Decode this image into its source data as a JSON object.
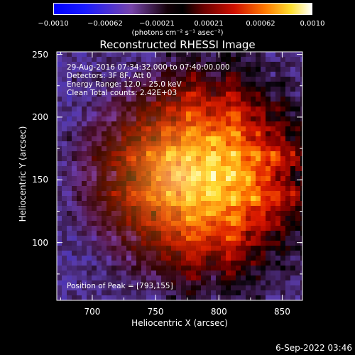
{
  "colorbar": {
    "ticks": [
      "−0.0010",
      "−0.00062",
      "−0.00021",
      "0.00021",
      "0.00062",
      "0.0010"
    ],
    "tick_values": [
      -0.001,
      -0.00062,
      -0.00021,
      0.00021,
      0.00062,
      0.001
    ],
    "units_label": "(photons cm⁻² s⁻¹ asec⁻²)",
    "colors": [
      "#0000ff",
      "#2222ff",
      "#7755aa",
      "#000000",
      "#550000",
      "#aa0000",
      "#ff3300",
      "#ff9900",
      "#ffee44",
      "#ffffff"
    ]
  },
  "chart_data": {
    "type": "heatmap",
    "title": "Reconstructed RHESSI Image",
    "xlabel": "Heliocentric X (arcsec)",
    "ylabel": "Heliocentric Y (arcsec)",
    "xlim": [
      672,
      866
    ],
    "ylim": [
      54,
      252
    ],
    "xticks": [
      700,
      750,
      800,
      850
    ],
    "yticks": [
      100,
      150,
      200,
      250
    ],
    "xtick_labels": [
      "700",
      "750",
      "800",
      "850"
    ],
    "ytick_labels": [
      "100",
      "150",
      "200",
      "250"
    ],
    "annotations": {
      "time_range": "29-Aug-2016 07:34:32.000 to 07:40:00.000",
      "detectors": "Detectors: 3F 8F, Att 0",
      "energy_range": "Energy Range: 12.0 – 25.0 keV",
      "clean_counts": "Clean     Total counts: 2.42E+03"
    },
    "peak_label": "Position of Peak = [793,155]",
    "peak_position": [
      793,
      155
    ]
  },
  "footer": {
    "date": "6-Sep-2022 03:46"
  }
}
